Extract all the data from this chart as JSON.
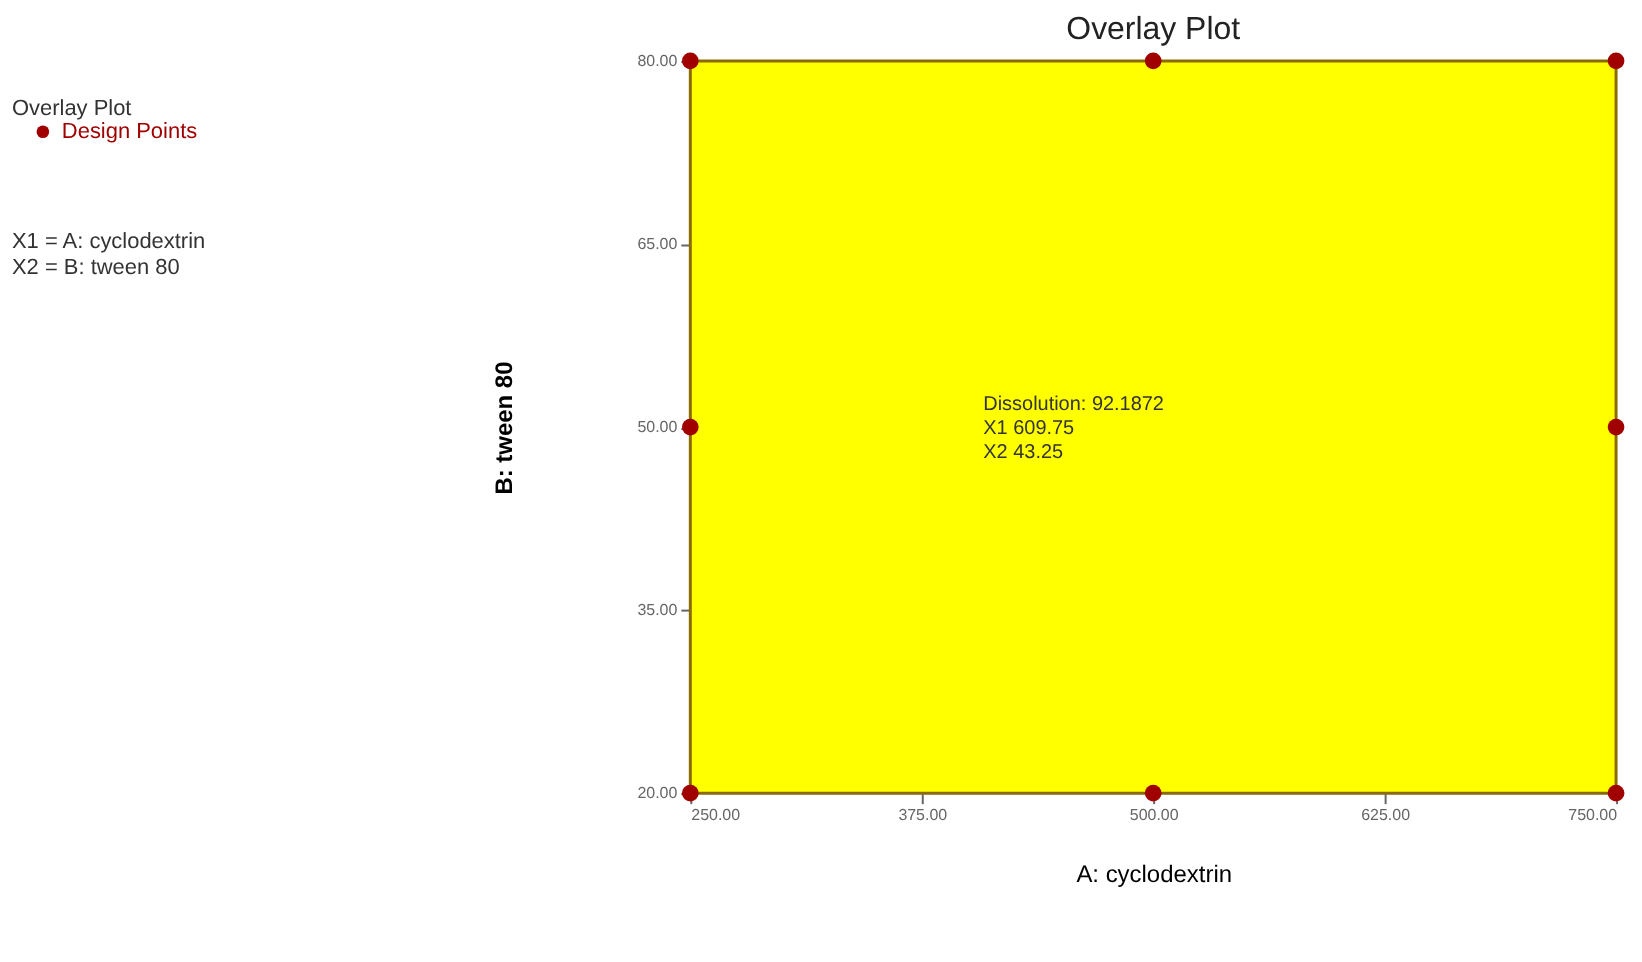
{
  "chart_data": {
    "type": "scatter",
    "title": "Overlay Plot",
    "xlabel": "A: cyclodextrin",
    "ylabel": "B: tween 80",
    "x": [
      250,
      250,
      250,
      500,
      500,
      750,
      750,
      750
    ],
    "series": [
      {
        "name": "Design Points",
        "color": "#a00000",
        "values": [
          20,
          50,
          80,
          20,
          80,
          20,
          50,
          80
        ]
      }
    ],
    "xlim": [
      250,
      750
    ],
    "ylim": [
      20,
      80
    ],
    "xticks": [
      {
        "value": 250,
        "label": "250.00"
      },
      {
        "value": 375,
        "label": "375.00"
      },
      {
        "value": 500,
        "label": "500.00"
      },
      {
        "value": 625,
        "label": "625.00"
      },
      {
        "value": 750,
        "label": "750.00"
      }
    ],
    "yticks": [
      {
        "value": 20,
        "label": "20.00"
      },
      {
        "value": 35,
        "label": "35.00"
      },
      {
        "value": 50,
        "label": "50.00"
      },
      {
        "value": 65,
        "label": "65.00"
      },
      {
        "value": 80,
        "label": "80.00"
      }
    ],
    "bands": [
      {
        "axis": "x",
        "from": 250,
        "to": 750,
        "color": "#ffff00"
      }
    ],
    "annotations": [
      "Overlay Plot",
      "X1 = A: cyclodextrin\nX2 = B: tween 80",
      "Dissolution: 92.1872\nX1 609.75\nX2 43.25"
    ],
    "grid": false,
    "legend": "left",
    "marker": "circle"
  }
}
